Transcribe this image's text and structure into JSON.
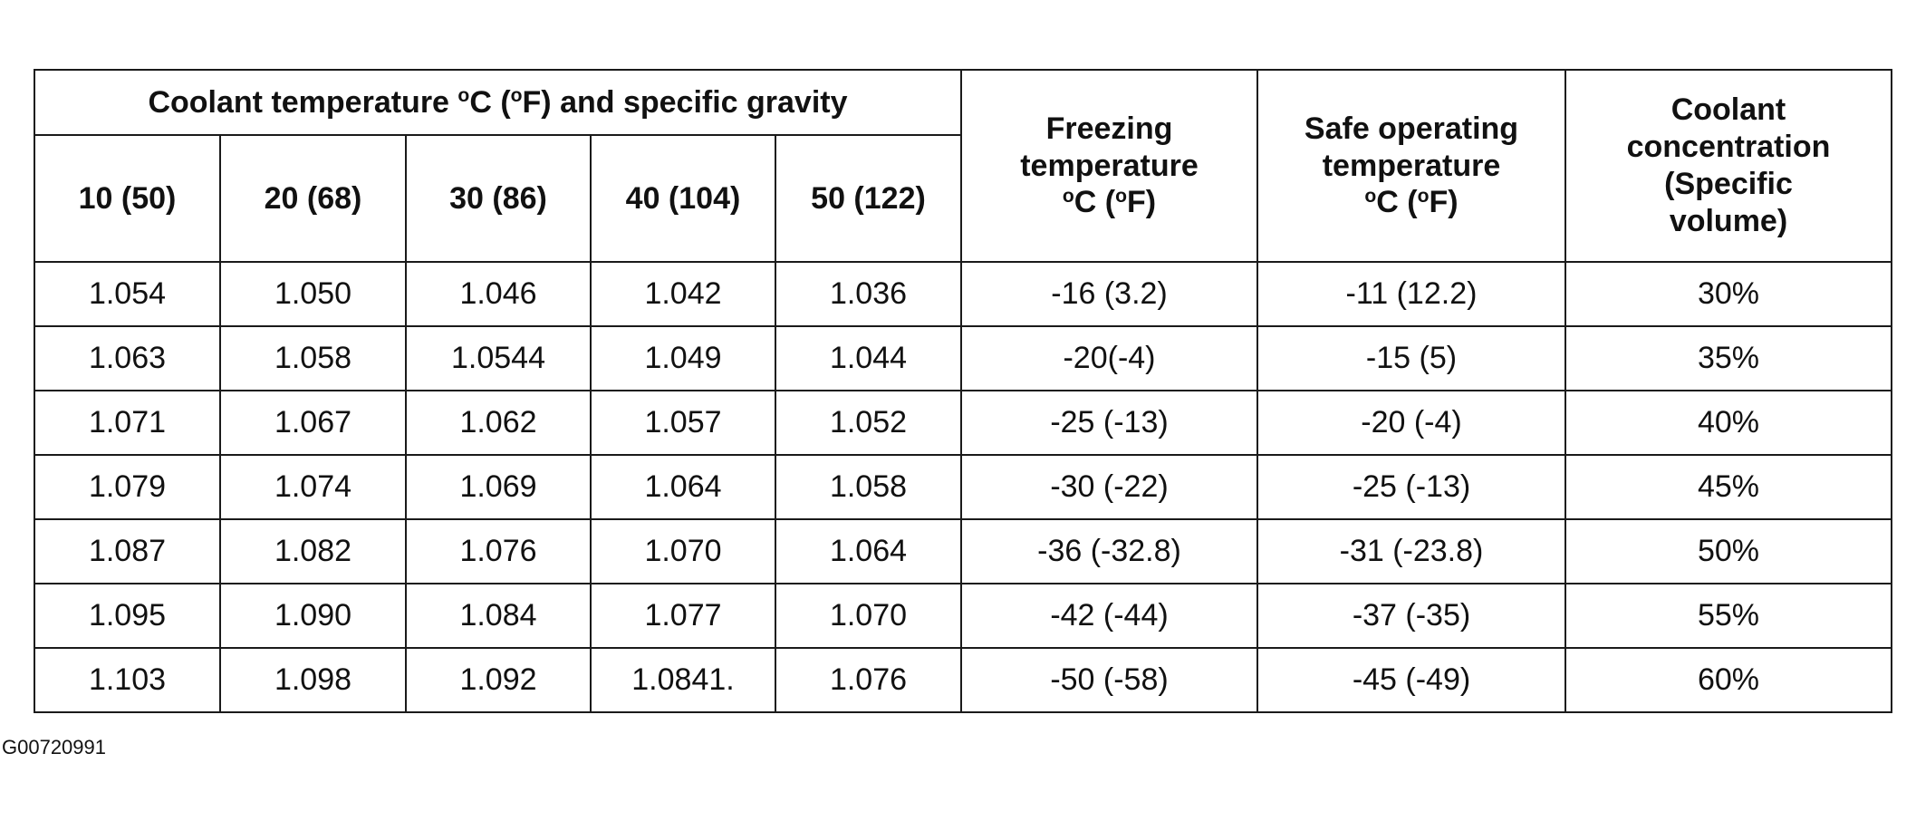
{
  "table": {
    "group_header": {
      "prefix": "Coolant temperature ",
      "deg1": "o",
      "mid": "C (",
      "deg2": "o",
      "suffix": "F) and specific gravity"
    },
    "temperature_columns": [
      "10 (50)",
      "20 (68)",
      "30 (86)",
      "40 (104)",
      "50 (122)"
    ],
    "freezing_header": {
      "line1": "Freezing",
      "line2": "temperature",
      "deg1": "o",
      "mid": "C (",
      "deg2": "o",
      "suffix": "F)"
    },
    "safe_header": {
      "line1": "Safe operating",
      "line2": "temperature",
      "deg1": "o",
      "mid": "C (",
      "deg2": "o",
      "suffix": "F)"
    },
    "concentration_header": {
      "line1": "Coolant",
      "line2": "concentration",
      "line3": "(Specific",
      "line4": "volume)"
    },
    "rows": [
      [
        "1.054",
        "1.050",
        "1.046",
        "1.042",
        "1.036",
        "-16 (3.2)",
        "-11 (12.2)",
        "30%"
      ],
      [
        "1.063",
        "1.058",
        "1.0544",
        "1.049",
        "1.044",
        "-20(-4)",
        "-15 (5)",
        "35%"
      ],
      [
        "1.071",
        "1.067",
        "1.062",
        "1.057",
        "1.052",
        "-25 (-13)",
        "-20 (-4)",
        "40%"
      ],
      [
        "1.079",
        "1.074",
        "1.069",
        "1.064",
        "1.058",
        "-30 (-22)",
        "-25 (-13)",
        "45%"
      ],
      [
        "1.087",
        "1.082",
        "1.076",
        "1.070",
        "1.064",
        "-36 (-32.8)",
        "-31 (-23.8)",
        "50%"
      ],
      [
        "1.095",
        "1.090",
        "1.084",
        "1.077",
        "1.070",
        "-42 (-44)",
        "-37 (-35)",
        "55%"
      ],
      [
        "1.103",
        "1.098",
        "1.092",
        "1.0841.",
        "1.076",
        "-50 (-58)",
        "-45 (-49)",
        "60%"
      ]
    ]
  },
  "figure_id": "G00720991"
}
